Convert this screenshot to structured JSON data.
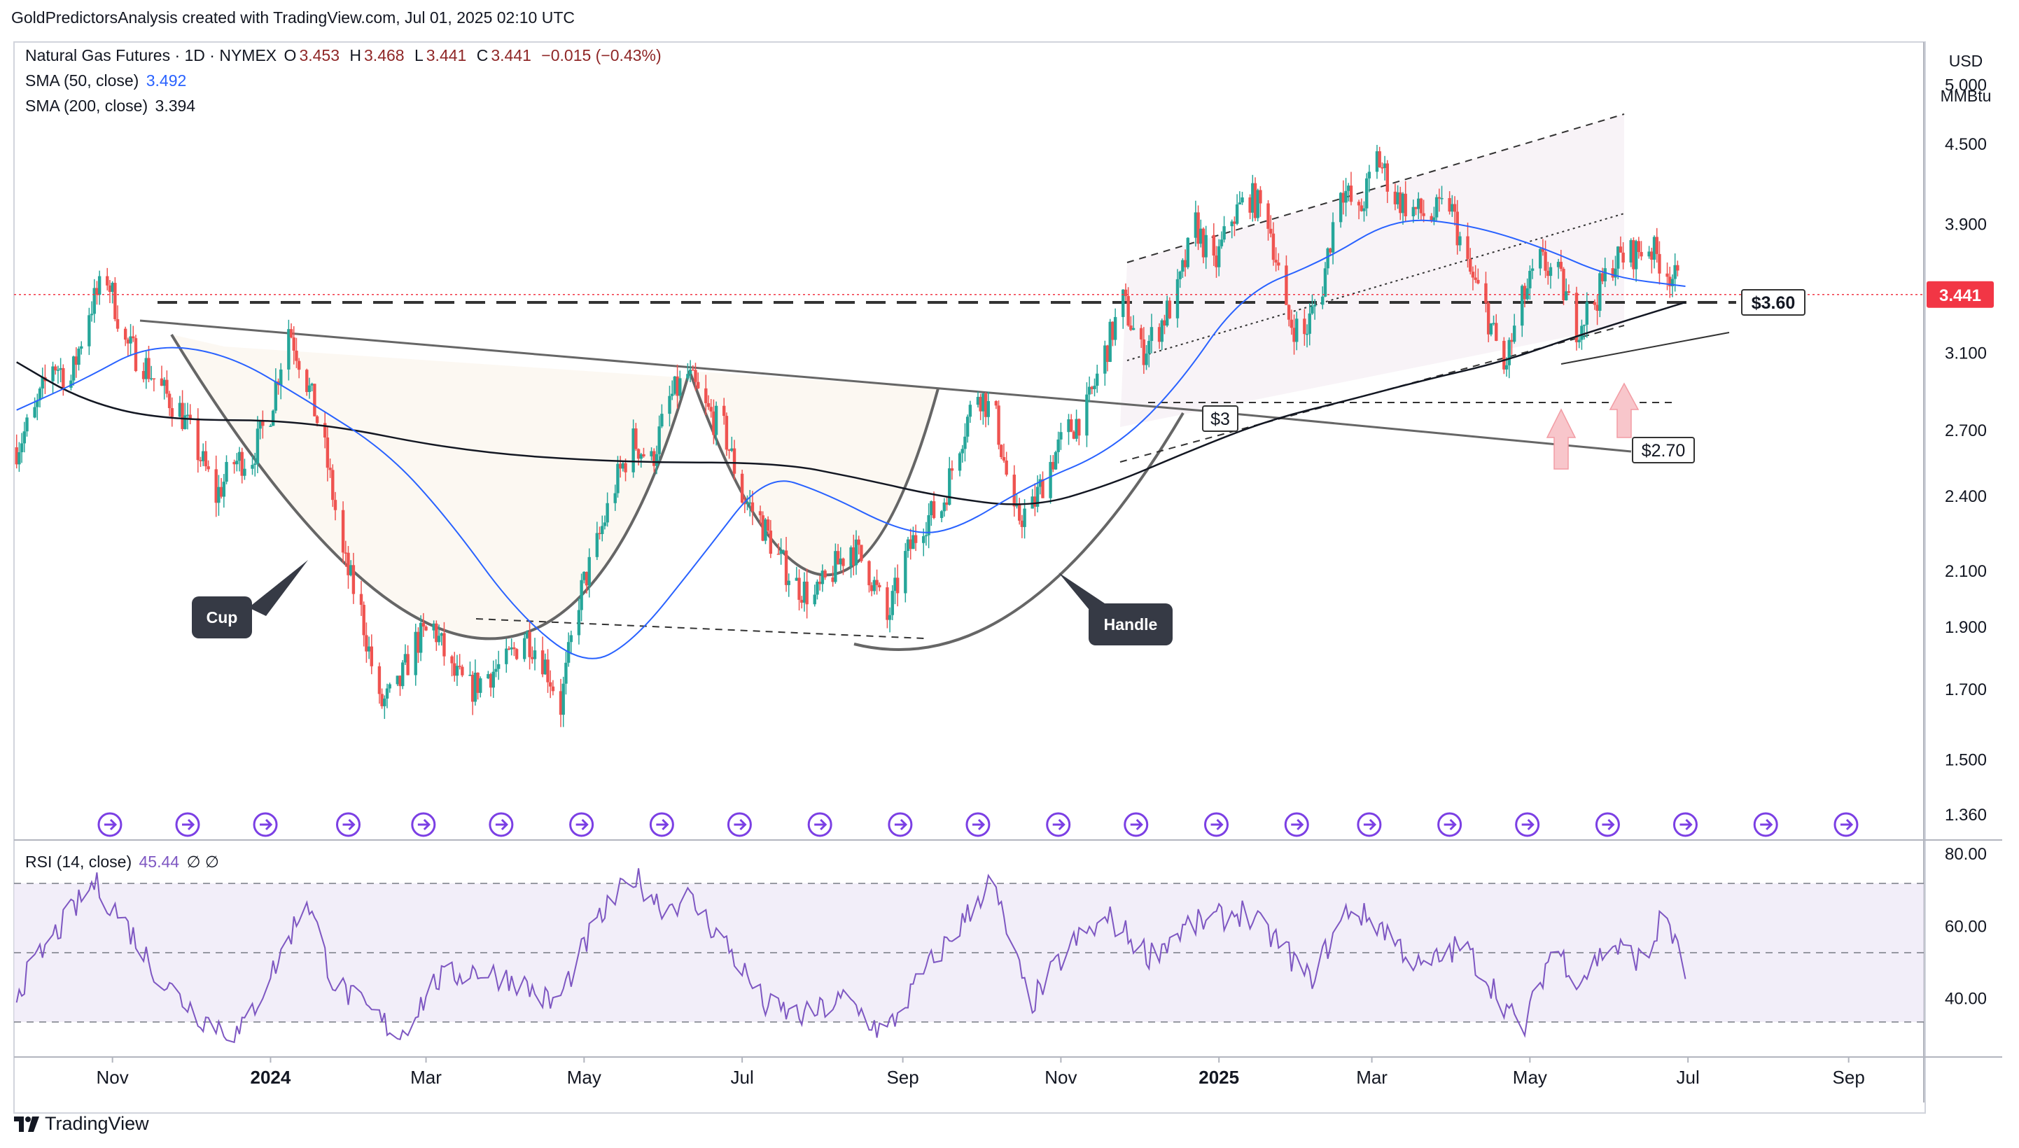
{
  "header": {
    "attribution": "GoldPredictorsAnalysis created with TradingView.com, Jul 01, 2025 02:10 UTC"
  },
  "legend": {
    "symbol": "Natural Gas Futures · 1D · NYMEX",
    "ohlc": [
      {
        "k": "O",
        "v": "3.453"
      },
      {
        "k": "H",
        "v": "3.468"
      },
      {
        "k": "L",
        "v": "3.441"
      },
      {
        "k": "C",
        "v": "3.441"
      }
    ],
    "change": "−0.015 (−0.43%)",
    "sma50_label": "SMA (50, close)",
    "sma50_value": "3.492",
    "sma200_label": "SMA (200, close)",
    "sma200_value": "3.394",
    "rsi_label": "RSI (14, close)",
    "rsi_value": "45.44",
    "rsi_extra": "∅ ∅"
  },
  "brand": "TradingView",
  "colors": {
    "up": "#26a69a",
    "down": "#ef5350",
    "sma50": "#2962ff",
    "sma200": "#131722",
    "rsi": "#7e57c2",
    "price_tag": "#f23645",
    "event": "#7b3fe4"
  },
  "chart_data": {
    "type": "candlestick",
    "title": "Natural Gas Futures · 1D · NYMEX",
    "currency": "USD",
    "unit": "MMBtu",
    "scale": "log",
    "ylim": [
      1.3,
      5.4
    ],
    "xlim": [
      "2023-09-24",
      "2025-09-30"
    ],
    "y_ticks": [
      "5.000",
      "4.500",
      "3.900",
      "3.100",
      "2.700",
      "2.400",
      "2.100",
      "1.900",
      "1.700",
      "1.500",
      "1.360"
    ],
    "y_tick_values": [
      5.0,
      4.5,
      3.9,
      3.1,
      2.7,
      2.4,
      2.1,
      1.9,
      1.7,
      1.5,
      1.36
    ],
    "x_ticks": [
      {
        "label": "Nov",
        "date": "2023-11-01",
        "bold": false
      },
      {
        "label": "2024",
        "date": "2024-01-01",
        "bold": true
      },
      {
        "label": "Mar",
        "date": "2024-03-01",
        "bold": false
      },
      {
        "label": "May",
        "date": "2024-05-01",
        "bold": false
      },
      {
        "label": "Jul",
        "date": "2024-07-01",
        "bold": false
      },
      {
        "label": "Sep",
        "date": "2024-09-01",
        "bold": false
      },
      {
        "label": "Nov",
        "date": "2024-11-01",
        "bold": false
      },
      {
        "label": "2025",
        "date": "2025-01-01",
        "bold": true
      },
      {
        "label": "Mar",
        "date": "2025-03-01",
        "bold": false
      },
      {
        "label": "May",
        "date": "2025-05-01",
        "bold": false
      },
      {
        "label": "Jul",
        "date": "2025-07-01",
        "bold": false
      },
      {
        "label": "Sep",
        "date": "2025-09-01",
        "bold": false
      }
    ],
    "last_price": "3.441",
    "close_path": [
      [
        "2023-09-25",
        2.62
      ],
      [
        "2023-10-02",
        2.78
      ],
      [
        "2023-10-09",
        3.05
      ],
      [
        "2023-10-16",
        2.95
      ],
      [
        "2023-10-23",
        3.35
      ],
      [
        "2023-10-30",
        3.55
      ],
      [
        "2023-11-06",
        3.15
      ],
      [
        "2023-11-13",
        3.05
      ],
      [
        "2023-11-20",
        2.9
      ],
      [
        "2023-11-27",
        2.8
      ],
      [
        "2023-12-04",
        2.6
      ],
      [
        "2023-12-11",
        2.4
      ],
      [
        "2023-12-18",
        2.55
      ],
      [
        "2023-12-25",
        2.58
      ],
      [
        "2024-01-01",
        2.8
      ],
      [
        "2024-01-08",
        3.25
      ],
      [
        "2024-01-15",
        2.95
      ],
      [
        "2024-01-22",
        2.6
      ],
      [
        "2024-01-29",
        2.15
      ],
      [
        "2024-02-05",
        1.95
      ],
      [
        "2024-02-12",
        1.65
      ],
      [
        "2024-02-19",
        1.7
      ],
      [
        "2024-02-26",
        1.85
      ],
      [
        "2024-03-04",
        1.9
      ],
      [
        "2024-03-11",
        1.75
      ],
      [
        "2024-03-18",
        1.7
      ],
      [
        "2024-03-25",
        1.75
      ],
      [
        "2024-04-01",
        1.78
      ],
      [
        "2024-04-08",
        1.88
      ],
      [
        "2024-04-15",
        1.8
      ],
      [
        "2024-04-22",
        1.65
      ],
      [
        "2024-04-29",
        2.0
      ],
      [
        "2024-05-06",
        2.2
      ],
      [
        "2024-05-13",
        2.45
      ],
      [
        "2024-05-20",
        2.65
      ],
      [
        "2024-05-27",
        2.55
      ],
      [
        "2024-06-03",
        2.85
      ],
      [
        "2024-06-10",
        2.98
      ],
      [
        "2024-06-17",
        2.8
      ],
      [
        "2024-06-24",
        2.7
      ],
      [
        "2024-07-01",
        2.4
      ],
      [
        "2024-07-08",
        2.3
      ],
      [
        "2024-07-15",
        2.15
      ],
      [
        "2024-07-22",
        2.05
      ],
      [
        "2024-07-29",
        2.0
      ],
      [
        "2024-08-05",
        2.1
      ],
      [
        "2024-08-12",
        2.2
      ],
      [
        "2024-08-19",
        2.1
      ],
      [
        "2024-08-26",
        1.92
      ],
      [
        "2024-09-02",
        2.15
      ],
      [
        "2024-09-09",
        2.3
      ],
      [
        "2024-09-16",
        2.35
      ],
      [
        "2024-09-23",
        2.65
      ],
      [
        "2024-09-30",
        2.9
      ],
      [
        "2024-10-07",
        2.75
      ],
      [
        "2024-10-14",
        2.3
      ],
      [
        "2024-10-21",
        2.35
      ],
      [
        "2024-10-28",
        2.55
      ],
      [
        "2024-11-04",
        2.7
      ],
      [
        "2024-11-11",
        2.8
      ],
      [
        "2024-11-18",
        3.1
      ],
      [
        "2024-11-25",
        3.4
      ],
      [
        "2024-12-02",
        3.1
      ],
      [
        "2024-12-09",
        3.25
      ],
      [
        "2024-12-16",
        3.45
      ],
      [
        "2024-12-23",
        3.9
      ],
      [
        "2024-12-30",
        3.6
      ],
      [
        "2025-01-06",
        3.95
      ],
      [
        "2025-01-13",
        4.1
      ],
      [
        "2025-01-20",
        3.95
      ],
      [
        "2025-01-27",
        3.3
      ],
      [
        "2025-02-03",
        3.2
      ],
      [
        "2025-02-10",
        3.5
      ],
      [
        "2025-02-17",
        4.2
      ],
      [
        "2025-02-24",
        3.95
      ],
      [
        "2025-03-03",
        4.4
      ],
      [
        "2025-03-10",
        4.1
      ],
      [
        "2025-03-17",
        4.0
      ],
      [
        "2025-03-24",
        3.95
      ],
      [
        "2025-03-31",
        4.05
      ],
      [
        "2025-04-07",
        3.6
      ],
      [
        "2025-04-14",
        3.35
      ],
      [
        "2025-04-21",
        3.0
      ],
      [
        "2025-04-28",
        3.4
      ],
      [
        "2025-05-05",
        3.65
      ],
      [
        "2025-05-12",
        3.55
      ],
      [
        "2025-05-19",
        3.25
      ],
      [
        "2025-05-26",
        3.4
      ],
      [
        "2025-06-02",
        3.65
      ],
      [
        "2025-06-09",
        3.7
      ],
      [
        "2025-06-16",
        3.75
      ],
      [
        "2025-06-23",
        3.6
      ],
      [
        "2025-06-30",
        3.441
      ]
    ],
    "sma50": [
      [
        "2023-09-25",
        2.8
      ],
      [
        "2023-10-20",
        2.95
      ],
      [
        "2023-11-15",
        3.15
      ],
      [
        "2023-12-15",
        3.1
      ],
      [
        "2024-01-15",
        2.85
      ],
      [
        "2024-02-15",
        2.6
      ],
      [
        "2024-03-10",
        2.3
      ],
      [
        "2024-04-05",
        1.95
      ],
      [
        "2024-05-01",
        1.77
      ],
      [
        "2024-05-20",
        1.85
      ],
      [
        "2024-06-15",
        2.15
      ],
      [
        "2024-07-10",
        2.5
      ],
      [
        "2024-08-01",
        2.42
      ],
      [
        "2024-09-01",
        2.25
      ],
      [
        "2024-09-20",
        2.25
      ],
      [
        "2024-10-20",
        2.45
      ],
      [
        "2024-11-20",
        2.6
      ],
      [
        "2024-12-15",
        2.9
      ],
      [
        "2025-01-10",
        3.45
      ],
      [
        "2025-02-10",
        3.65
      ],
      [
        "2025-03-10",
        3.95
      ],
      [
        "2025-04-07",
        3.9
      ],
      [
        "2025-05-05",
        3.75
      ],
      [
        "2025-06-01",
        3.55
      ],
      [
        "2025-06-30",
        3.492
      ]
    ],
    "sma200": [
      [
        "2023-09-25",
        3.05
      ],
      [
        "2023-10-20",
        2.85
      ],
      [
        "2023-11-20",
        2.75
      ],
      [
        "2024-01-15",
        2.75
      ],
      [
        "2024-03-15",
        2.6
      ],
      [
        "2024-05-15",
        2.55
      ],
      [
        "2024-07-15",
        2.55
      ],
      [
        "2024-08-15",
        2.48
      ],
      [
        "2024-09-15",
        2.4
      ],
      [
        "2024-10-20",
        2.35
      ],
      [
        "2024-11-20",
        2.45
      ],
      [
        "2024-12-20",
        2.6
      ],
      [
        "2025-01-20",
        2.75
      ],
      [
        "2025-02-20",
        2.85
      ],
      [
        "2025-03-20",
        2.95
      ],
      [
        "2025-04-20",
        3.05
      ],
      [
        "2025-05-20",
        3.2
      ],
      [
        "2025-06-30",
        3.394
      ]
    ],
    "rsi": {
      "ylim": [
        20,
        80
      ],
      "ticks": [
        80,
        60,
        40
      ],
      "tick_labels": [
        "80.00",
        "60.00",
        "40.00"
      ],
      "bands": [
        70,
        50,
        30
      ],
      "last": 45.44,
      "path": [
        [
          "2023-09-25",
          42
        ],
        [
          "2023-10-10",
          58
        ],
        [
          "2023-10-25",
          72
        ],
        [
          "2023-11-05",
          62
        ],
        [
          "2023-11-20",
          45
        ],
        [
          "2023-12-05",
          35
        ],
        [
          "2023-12-20",
          30
        ],
        [
          "2024-01-05",
          52
        ],
        [
          "2024-01-15",
          68
        ],
        [
          "2024-01-25",
          45
        ],
        [
          "2024-02-05",
          38
        ],
        [
          "2024-02-20",
          30
        ],
        [
          "2024-03-05",
          45
        ],
        [
          "2024-03-20",
          48
        ],
        [
          "2024-04-05",
          45
        ],
        [
          "2024-04-20",
          38
        ],
        [
          "2024-05-05",
          60
        ],
        [
          "2024-05-20",
          74
        ],
        [
          "2024-06-01",
          65
        ],
        [
          "2024-06-10",
          68
        ],
        [
          "2024-06-25",
          55
        ],
        [
          "2024-07-10",
          38
        ],
        [
          "2024-07-25",
          35
        ],
        [
          "2024-08-10",
          40
        ],
        [
          "2024-08-25",
          30
        ],
        [
          "2024-09-10",
          48
        ],
        [
          "2024-09-25",
          62
        ],
        [
          "2024-10-05",
          73
        ],
        [
          "2024-10-20",
          38
        ],
        [
          "2024-11-05",
          55
        ],
        [
          "2024-11-20",
          62
        ],
        [
          "2024-12-05",
          52
        ],
        [
          "2024-12-20",
          60
        ],
        [
          "2025-01-10",
          64
        ],
        [
          "2025-01-25",
          55
        ],
        [
          "2025-02-05",
          45
        ],
        [
          "2025-02-20",
          65
        ],
        [
          "2025-03-05",
          60
        ],
        [
          "2025-03-20",
          48
        ],
        [
          "2025-04-05",
          55
        ],
        [
          "2025-04-20",
          40
        ],
        [
          "2025-04-28",
          30
        ],
        [
          "2025-05-10",
          55
        ],
        [
          "2025-05-20",
          45
        ],
        [
          "2025-06-01",
          55
        ],
        [
          "2025-06-15",
          50
        ],
        [
          "2025-06-22",
          65
        ],
        [
          "2025-06-30",
          45.44
        ]
      ]
    },
    "annotations": [
      {
        "label": "$3.60",
        "price": 3.6
      },
      {
        "label": "$3",
        "price": 3.0
      },
      {
        "label": "$2.70",
        "price": 2.7
      },
      {
        "label": "Cup"
      },
      {
        "label": "Handle"
      }
    ],
    "events": [
      "2023-10-31",
      "2023-11-30",
      "2023-12-30",
      "2024-01-31",
      "2024-02-29",
      "2024-03-30",
      "2024-04-30",
      "2024-05-31",
      "2024-06-30",
      "2024-07-31",
      "2024-08-31",
      "2024-09-30",
      "2024-10-31",
      "2024-11-30",
      "2024-12-31",
      "2025-01-31",
      "2025-02-28",
      "2025-03-31",
      "2025-04-30",
      "2025-05-31",
      "2025-06-30",
      "2025-07-31",
      "2025-08-31"
    ]
  }
}
